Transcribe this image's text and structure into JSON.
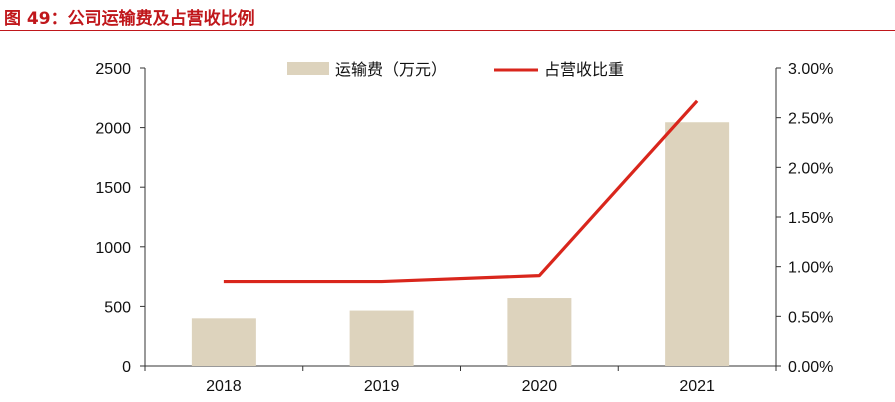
{
  "figure": {
    "title": "图 49：公司运输费及占营收比例"
  },
  "chart_data": {
    "type": "bar",
    "categories": [
      "2018",
      "2019",
      "2020",
      "2021"
    ],
    "series": [
      {
        "name": "运输费（万元）",
        "type": "bar",
        "axis": "left",
        "color": "#ddd3bd",
        "values": [
          400,
          465,
          570,
          2045
        ]
      },
      {
        "name": "占营收比重",
        "type": "line",
        "axis": "right",
        "color": "#d9261c",
        "values": [
          0.85,
          0.85,
          0.91,
          2.67
        ]
      }
    ],
    "y_left": {
      "ylim": [
        0,
        2500
      ],
      "ticks": [
        "2500",
        "2000",
        "1500",
        "1000",
        "500",
        "0"
      ],
      "tick_values": [
        2500,
        2000,
        1500,
        1000,
        500,
        0
      ]
    },
    "y_right": {
      "ylim": [
        0,
        3
      ],
      "ticks": [
        "3.00%",
        "2.50%",
        "2.00%",
        "1.50%",
        "1.00%",
        "0.50%",
        "0.00%"
      ],
      "tick_values": [
        3,
        2.5,
        2,
        1.5,
        1,
        0.5,
        0
      ]
    },
    "legend_position": "top-center",
    "grid": false
  }
}
